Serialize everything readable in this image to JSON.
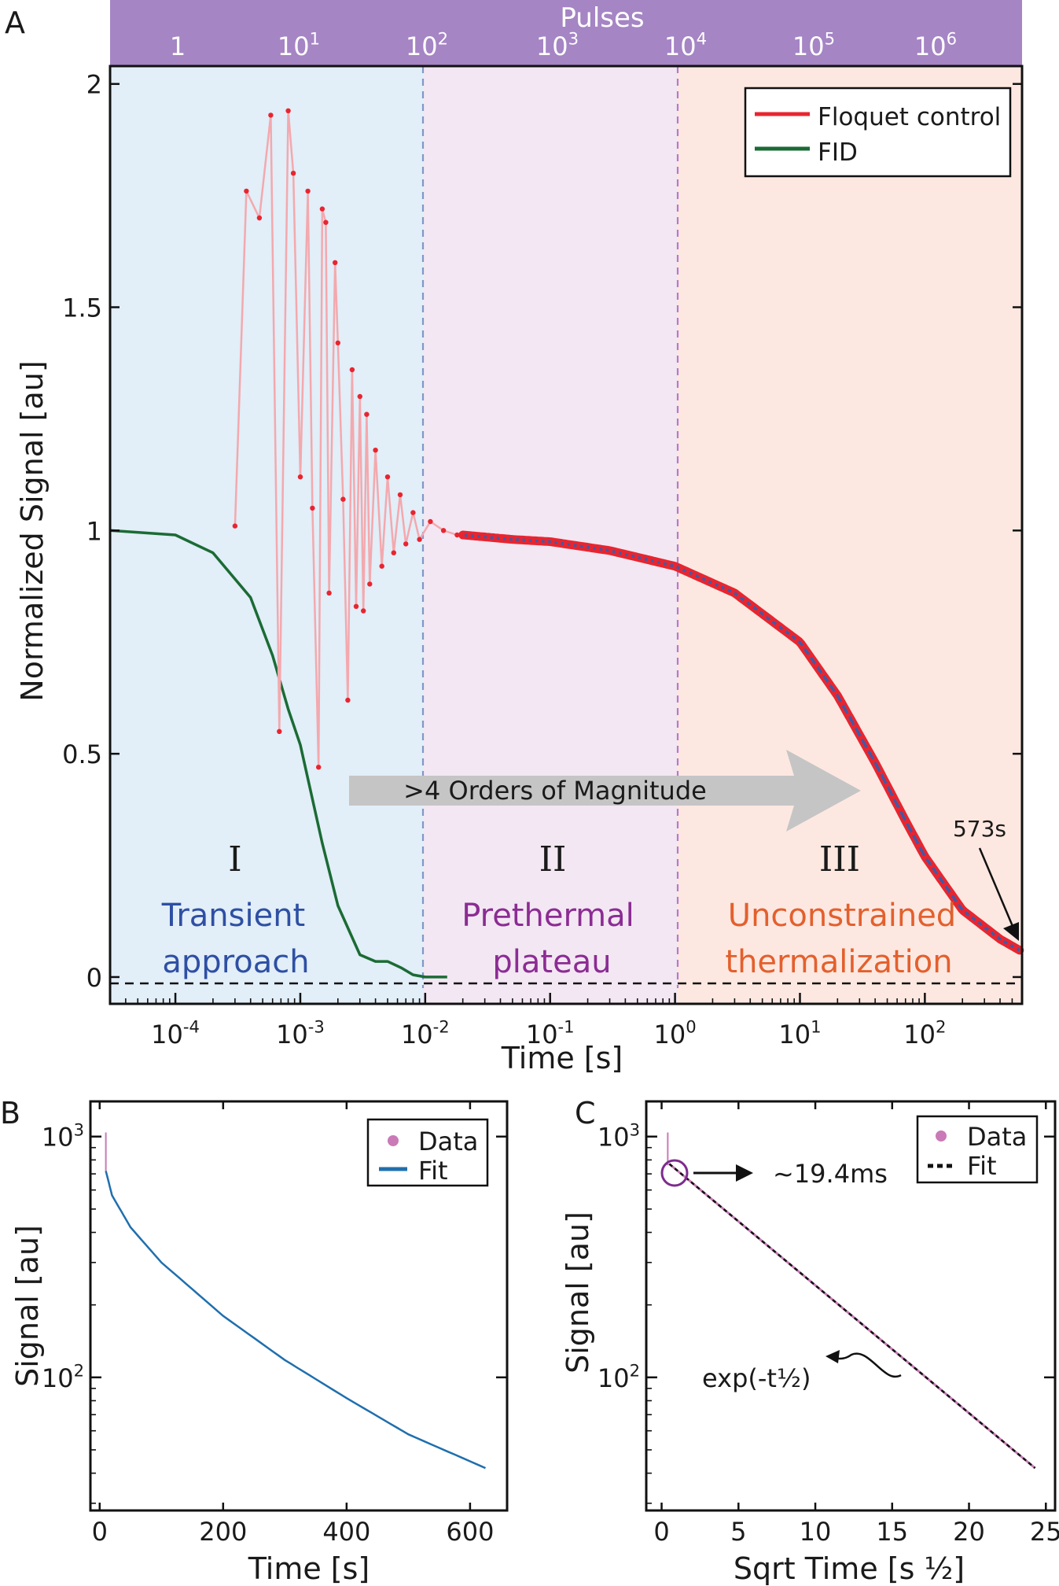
{
  "panel_labels": {
    "a": "A",
    "b": "B",
    "c": "C"
  },
  "colors": {
    "region_1": "#e2eef8",
    "region_2": "#f3e7f3",
    "region_3": "#fde8e1",
    "pulse_bar": "#a585c4",
    "floquet": "#e8252f",
    "floquet_line": "#f3a9ae",
    "fit_blue": "#3f5aa6",
    "fid": "#1b6b34",
    "panel_b_fit": "#1f6fae",
    "panel_c_data": "#c97ab7"
  },
  "chart_data": [
    {
      "id": "A",
      "type": "line",
      "xscale": "log",
      "xlabel": "Time [s]",
      "ylabel": "Normalized Signal [au]",
      "xlim": [
        3e-05,
        600
      ],
      "ylim": [
        -0.06,
        2.04
      ],
      "x_ticks": [
        "10-4",
        "10-3",
        "10-2",
        "10-1",
        "100",
        "101",
        "102"
      ],
      "y_ticks": [
        "0",
        "0.5",
        "1",
        "1.5",
        "2"
      ],
      "top_axis": {
        "label": "Pulses",
        "ticks": [
          "1",
          "101",
          "102",
          "103",
          "104",
          "105",
          "106"
        ]
      },
      "legend": {
        "position": "top-right",
        "entries": [
          "Floquet control",
          "FID"
        ]
      },
      "regions": [
        {
          "numeral": "I",
          "label_line1": "Transient",
          "label_line2": "approach",
          "x_from": 3e-05,
          "x_to": 0.01,
          "label_color": "#2e4fa3"
        },
        {
          "numeral": "II",
          "label_line1": "Prethermal",
          "label_line2": "plateau",
          "x_from": 0.01,
          "x_to": 1.1,
          "label_color": "#8b2c93"
        },
        {
          "numeral": "III",
          "label_line1": "Unconstrained",
          "label_line2": "thermalization",
          "x_from": 1.1,
          "x_to": 600,
          "label_color": "#e3602d"
        }
      ],
      "annotations": {
        "arrow_text": ">4 Orders of Magnitude",
        "end_label": "573s"
      },
      "series": [
        {
          "name": "Floquet control",
          "transient_points": [
            [
              0.0003,
              1.01
            ],
            [
              0.00037,
              1.76
            ],
            [
              0.00047,
              1.7
            ],
            [
              0.00058,
              1.93
            ],
            [
              0.00068,
              0.55
            ],
            [
              0.0008,
              1.94
            ],
            [
              0.00088,
              1.8
            ],
            [
              0.001,
              1.12
            ],
            [
              0.00115,
              1.76
            ],
            [
              0.00125,
              1.05
            ],
            [
              0.0014,
              0.47
            ],
            [
              0.0015,
              1.72
            ],
            [
              0.0016,
              1.69
            ],
            [
              0.0017,
              0.86
            ],
            [
              0.0019,
              1.6
            ],
            [
              0.002,
              1.42
            ],
            [
              0.0022,
              1.07
            ],
            [
              0.0024,
              0.62
            ],
            [
              0.0026,
              1.36
            ],
            [
              0.0028,
              0.83
            ],
            [
              0.003,
              1.3
            ],
            [
              0.0032,
              0.82
            ],
            [
              0.0034,
              1.26
            ],
            [
              0.0036,
              0.88
            ],
            [
              0.004,
              1.18
            ],
            [
              0.0045,
              0.92
            ],
            [
              0.005,
              1.12
            ],
            [
              0.0056,
              0.95
            ],
            [
              0.0063,
              1.08
            ],
            [
              0.007,
              0.97
            ],
            [
              0.008,
              1.04
            ],
            [
              0.009,
              0.98
            ],
            [
              0.011,
              1.02
            ],
            [
              0.014,
              1.0
            ],
            [
              0.018,
              0.99
            ],
            [
              0.02,
              0.99
            ]
          ],
          "decay_points": [
            [
              0.02,
              0.99
            ],
            [
              0.05,
              0.98
            ],
            [
              0.1,
              0.975
            ],
            [
              0.3,
              0.955
            ],
            [
              1,
              0.92
            ],
            [
              3,
              0.86
            ],
            [
              10,
              0.75
            ],
            [
              20,
              0.63
            ],
            [
              40,
              0.48
            ],
            [
              70,
              0.35
            ],
            [
              100,
              0.27
            ],
            [
              200,
              0.15
            ],
            [
              400,
              0.085
            ],
            [
              573,
              0.06
            ]
          ]
        },
        {
          "name": "FID",
          "points": [
            [
              3e-05,
              1.0
            ],
            [
              0.0001,
              0.99
            ],
            [
              0.0002,
              0.95
            ],
            [
              0.0004,
              0.85
            ],
            [
              0.0006,
              0.72
            ],
            [
              0.0008,
              0.6
            ],
            [
              0.001,
              0.52
            ],
            [
              0.0015,
              0.3
            ],
            [
              0.002,
              0.16
            ],
            [
              0.003,
              0.05
            ],
            [
              0.004,
              0.035
            ],
            [
              0.005,
              0.035
            ],
            [
              0.0065,
              0.02
            ],
            [
              0.008,
              0.005
            ],
            [
              0.01,
              0.0
            ],
            [
              0.015,
              0.0
            ]
          ]
        }
      ]
    },
    {
      "id": "B",
      "type": "line",
      "xlabel": "Time [s]",
      "ylabel": "Signal [au]",
      "yscale": "log",
      "xlim": [
        -15,
        660
      ],
      "ylim": [
        28,
        1400
      ],
      "x_ticks": [
        "0",
        "200",
        "400",
        "600"
      ],
      "y_ticks": [
        "103",
        "102"
      ],
      "legend": {
        "position": "top-right",
        "entries": [
          "Data",
          "Fit"
        ]
      },
      "series": [
        {
          "name": "Fit",
          "points": [
            [
              10,
              720
            ],
            [
              20,
              570
            ],
            [
              50,
              420
            ],
            [
              100,
              300
            ],
            [
              200,
              180
            ],
            [
              300,
              118
            ],
            [
              400,
              82
            ],
            [
              500,
              58
            ],
            [
              625,
              42
            ]
          ]
        }
      ]
    },
    {
      "id": "C",
      "type": "line",
      "xlabel": "Sqrt Time [s ½]",
      "ylabel": "Signal [au]",
      "yscale": "log",
      "xlim": [
        -1,
        25.6
      ],
      "ylim": [
        28,
        1400
      ],
      "x_ticks": [
        "0",
        "5",
        "10",
        "15",
        "20",
        "25"
      ],
      "y_ticks": [
        "103",
        "102"
      ],
      "legend": {
        "position": "top-right",
        "entries": [
          "Data",
          "Fit"
        ]
      },
      "annotations": {
        "marker_label": "~19.4ms",
        "fit_label": "exp(-t½)"
      },
      "series": [
        {
          "name": "Fit",
          "points": [
            [
              0.5,
              770
            ],
            [
              24.3,
              42
            ]
          ]
        }
      ]
    }
  ]
}
